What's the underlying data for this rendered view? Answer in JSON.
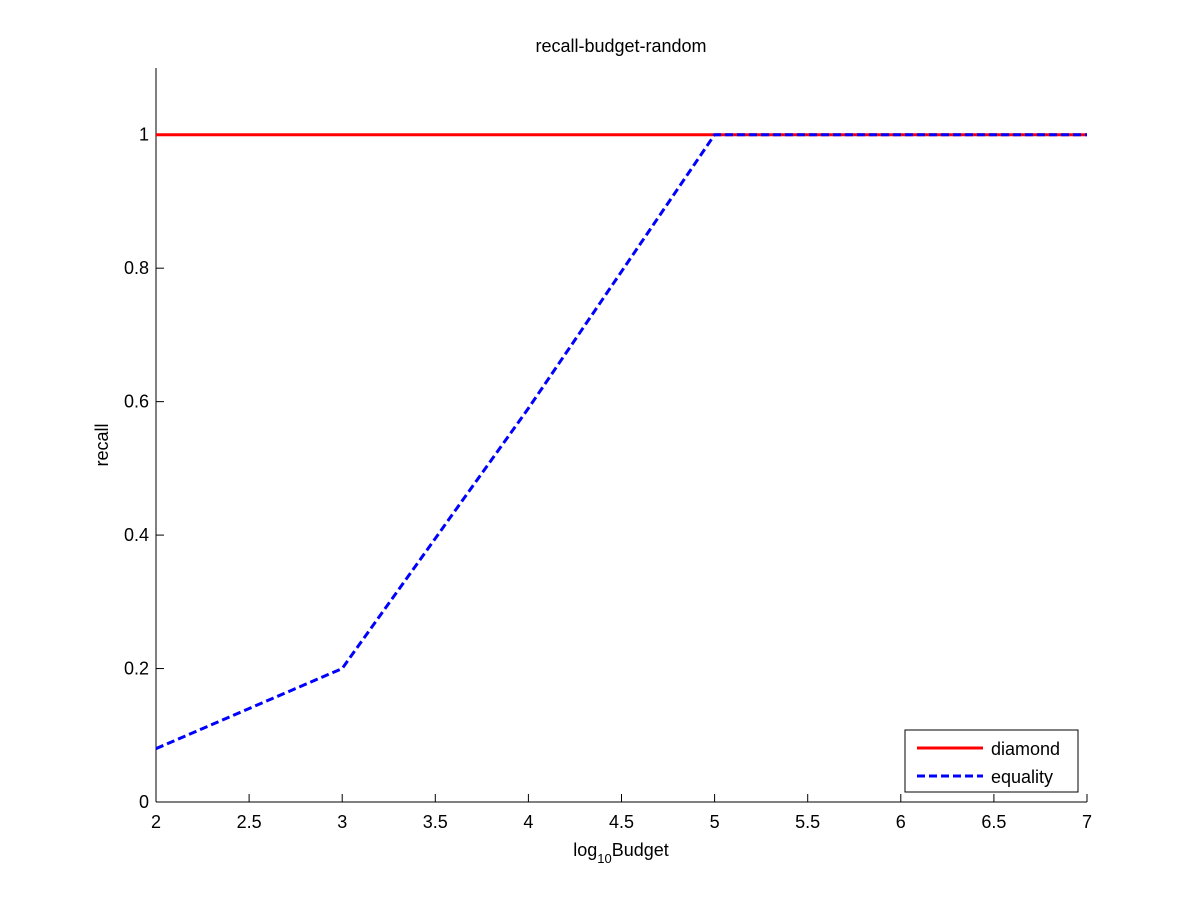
{
  "chart_data": {
    "type": "line",
    "title": "recall-budget-random",
    "xlabel": {
      "prefix": "log",
      "subscript": "10",
      "suffix": "Budget"
    },
    "ylabel": "recall",
    "xlim": [
      2,
      7
    ],
    "ylim": [
      0,
      1.1
    ],
    "xticks": [
      2,
      2.5,
      3,
      3.5,
      4,
      4.5,
      5,
      5.5,
      6,
      6.5,
      7
    ],
    "xtick_labels": [
      "2",
      "2.5",
      "3",
      "3.5",
      "4",
      "4.5",
      "5",
      "5.5",
      "6",
      "6.5",
      "7"
    ],
    "yticks": [
      0,
      0.2,
      0.4,
      0.6,
      0.8,
      1
    ],
    "ytick_labels": [
      "0",
      "0.2",
      "0.4",
      "0.6",
      "0.8",
      "1"
    ],
    "grid": false,
    "legend_position": "bottom-right",
    "series": [
      {
        "name": "diamond",
        "color": "#ff0000",
        "style": "solid",
        "x": [
          2,
          3,
          4,
          5,
          6,
          7
        ],
        "y": [
          1,
          1,
          1,
          1,
          1,
          1
        ]
      },
      {
        "name": "equality",
        "color": "#0000ff",
        "style": "dashed",
        "x": [
          2,
          3,
          4,
          5,
          6,
          7
        ],
        "y": [
          0.08,
          0.2,
          0.59,
          1,
          1,
          1
        ]
      }
    ]
  }
}
